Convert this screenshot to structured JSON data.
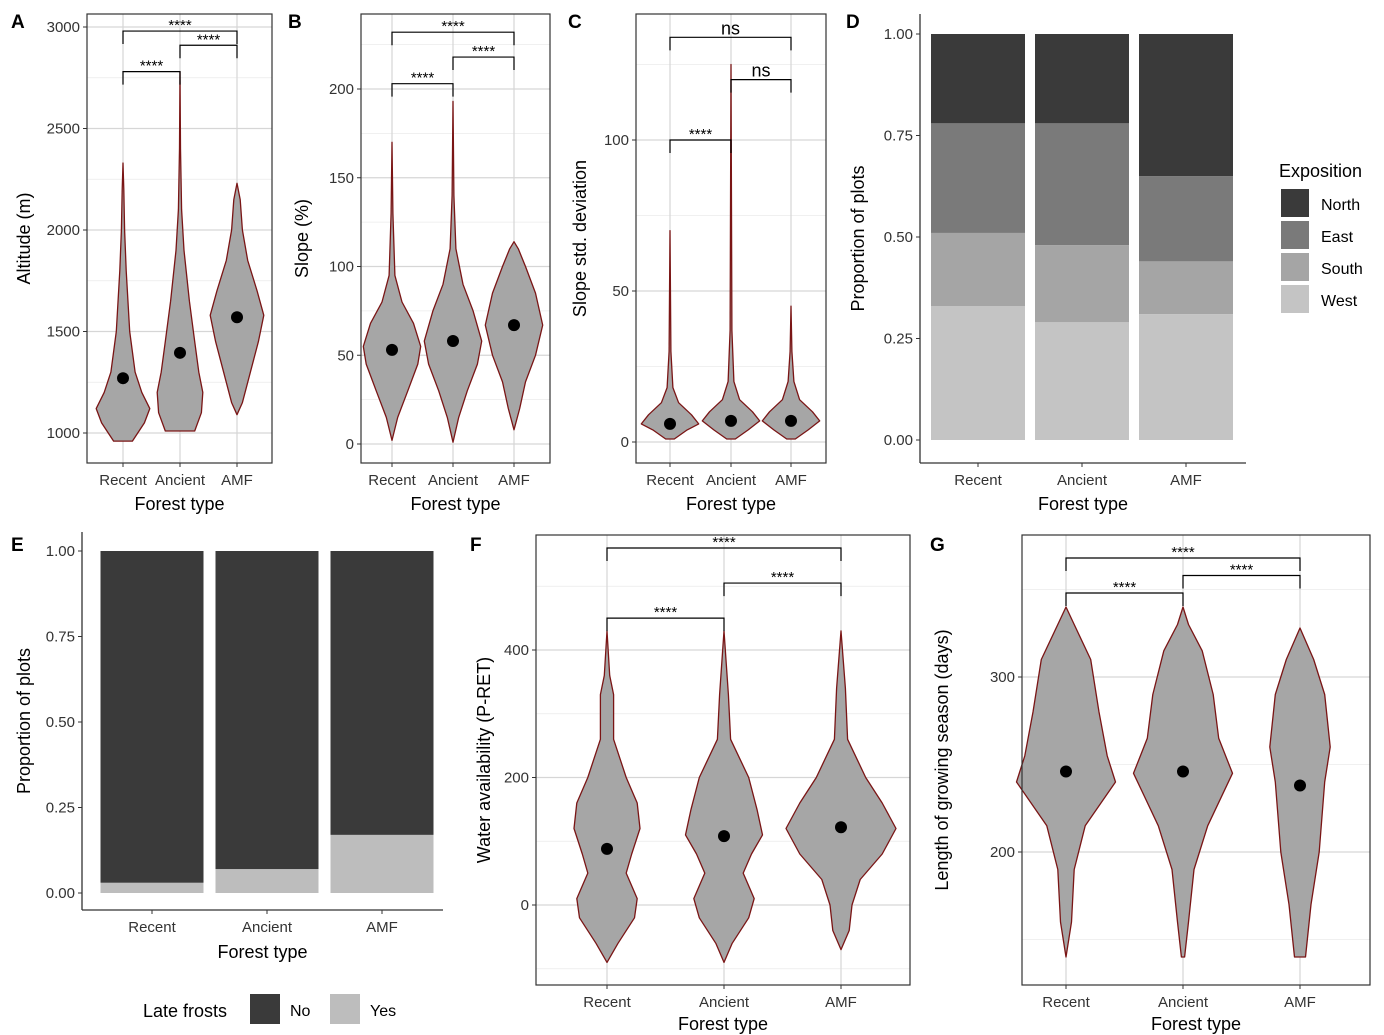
{
  "chart_data": [
    {
      "id": "A",
      "type": "violin",
      "panel_label": "A",
      "xlabel": "Forest type",
      "ylabel": "Altitude (m)",
      "categories": [
        "Recent",
        "Ancient",
        "AMF"
      ],
      "ylim": [
        930,
        3050
      ],
      "yticks": [
        1000,
        1500,
        2000,
        2500,
        3000
      ],
      "grid": true,
      "panel_border": true,
      "fill_color": "#a6a6a6",
      "outline_color": "#7a1515",
      "means": [
        1270,
        1395,
        1570
      ],
      "distributions": [
        {
          "category": "Recent",
          "profile": [
            [
              960,
              0.35
            ],
            [
              1050,
              0.8
            ],
            [
              1120,
              1.0
            ],
            [
              1200,
              0.7
            ],
            [
              1300,
              0.45
            ],
            [
              1500,
              0.25
            ],
            [
              1800,
              0.12
            ],
            [
              2000,
              0.06
            ],
            [
              2200,
              0.03
            ],
            [
              2330,
              0
            ]
          ]
        },
        {
          "category": "Ancient",
          "profile": [
            [
              1010,
              0.55
            ],
            [
              1100,
              0.8
            ],
            [
              1200,
              0.85
            ],
            [
              1300,
              0.7
            ],
            [
              1450,
              0.55
            ],
            [
              1650,
              0.35
            ],
            [
              1900,
              0.15
            ],
            [
              2100,
              0.06
            ],
            [
              2400,
              0.02
            ],
            [
              2780,
              0
            ]
          ]
        },
        {
          "category": "AMF",
          "profile": [
            [
              1090,
              0
            ],
            [
              1150,
              0.2
            ],
            [
              1300,
              0.5
            ],
            [
              1450,
              0.8
            ],
            [
              1580,
              1.0
            ],
            [
              1700,
              0.75
            ],
            [
              1850,
              0.4
            ],
            [
              2000,
              0.2
            ],
            [
              2150,
              0.12
            ],
            [
              2230,
              0
            ]
          ]
        }
      ],
      "comparisons": [
        {
          "from": "Recent",
          "to": "Ancient",
          "y": 2780,
          "label": "****"
        },
        {
          "from": "Ancient",
          "to": "AMF",
          "y": 2910,
          "label": "****"
        },
        {
          "from": "Recent",
          "to": "AMF",
          "y": 2980,
          "label": "****"
        }
      ]
    },
    {
      "id": "B",
      "type": "violin",
      "panel_label": "B",
      "xlabel": "Forest type",
      "ylabel": "Slope (%)",
      "categories": [
        "Recent",
        "Ancient",
        "AMF"
      ],
      "ylim": [
        -5,
        240
      ],
      "yticks": [
        0,
        50,
        100,
        150,
        200
      ],
      "grid": true,
      "panel_border": true,
      "fill_color": "#a6a6a6",
      "outline_color": "#7a1515",
      "means": [
        53,
        58,
        67
      ],
      "distributions": [
        {
          "category": "Recent",
          "profile": [
            [
              2,
              0
            ],
            [
              15,
              0.2
            ],
            [
              30,
              0.55
            ],
            [
              45,
              0.9
            ],
            [
              55,
              1.0
            ],
            [
              68,
              0.75
            ],
            [
              80,
              0.35
            ],
            [
              95,
              0.1
            ],
            [
              130,
              0.03
            ],
            [
              170,
              0
            ]
          ]
        },
        {
          "category": "Ancient",
          "profile": [
            [
              1,
              0
            ],
            [
              15,
              0.2
            ],
            [
              30,
              0.5
            ],
            [
              45,
              0.85
            ],
            [
              58,
              1.0
            ],
            [
              75,
              0.7
            ],
            [
              90,
              0.35
            ],
            [
              110,
              0.1
            ],
            [
              140,
              0.03
            ],
            [
              193,
              0
            ]
          ]
        },
        {
          "category": "AMF",
          "profile": [
            [
              8,
              0
            ],
            [
              20,
              0.2
            ],
            [
              35,
              0.4
            ],
            [
              50,
              0.75
            ],
            [
              67,
              1.0
            ],
            [
              85,
              0.75
            ],
            [
              100,
              0.4
            ],
            [
              110,
              0.15
            ],
            [
              114,
              0
            ]
          ]
        }
      ],
      "comparisons": [
        {
          "from": "Recent",
          "to": "Ancient",
          "y": 203,
          "label": "****"
        },
        {
          "from": "Ancient",
          "to": "AMF",
          "y": 218,
          "label": "****"
        },
        {
          "from": "Recent",
          "to": "AMF",
          "y": 232,
          "label": "****"
        }
      ]
    },
    {
      "id": "C",
      "type": "violin",
      "panel_label": "C",
      "xlabel": "Forest type",
      "ylabel": "Slope std. deviation",
      "categories": [
        "Recent",
        "Ancient",
        "AMF"
      ],
      "ylim": [
        -3,
        134
      ],
      "yticks": [
        0,
        50,
        100
      ],
      "grid": true,
      "panel_border": true,
      "fill_color": "#a6a6a6",
      "outline_color": "#7a1515",
      "means": [
        6,
        7,
        7
      ],
      "distributions": [
        {
          "category": "Recent",
          "profile": [
            [
              1,
              0.15
            ],
            [
              4,
              0.6
            ],
            [
              6,
              1.0
            ],
            [
              9,
              0.75
            ],
            [
              13,
              0.3
            ],
            [
              18,
              0.1
            ],
            [
              30,
              0.03
            ],
            [
              70,
              0
            ]
          ]
        },
        {
          "category": "Ancient",
          "profile": [
            [
              1,
              0.15
            ],
            [
              4,
              0.6
            ],
            [
              7,
              1.0
            ],
            [
              10,
              0.75
            ],
            [
              14,
              0.3
            ],
            [
              20,
              0.1
            ],
            [
              37,
              0.03
            ],
            [
              125,
              0
            ]
          ]
        },
        {
          "category": "AMF",
          "profile": [
            [
              1,
              0.15
            ],
            [
              4,
              0.6
            ],
            [
              7,
              1.0
            ],
            [
              10,
              0.75
            ],
            [
              14,
              0.3
            ],
            [
              20,
              0.1
            ],
            [
              30,
              0.03
            ],
            [
              45,
              0
            ]
          ]
        }
      ],
      "comparisons": [
        {
          "from": "Recent",
          "to": "Ancient",
          "y": 100,
          "label": "****"
        },
        {
          "from": "Ancient",
          "to": "AMF",
          "y": 120,
          "label": "ns"
        },
        {
          "from": "Recent",
          "to": "AMF",
          "y": 134,
          "label": "ns"
        }
      ]
    },
    {
      "id": "D",
      "type": "bar",
      "panel_label": "D",
      "stacked": true,
      "xlabel": "Forest type",
      "ylabel": "Proportion of plots",
      "categories": [
        "Recent",
        "Ancient",
        "AMF"
      ],
      "ylim": [
        0,
        1
      ],
      "yticks": [
        0,
        0.25,
        0.5,
        0.75,
        1.0
      ],
      "ytick_labels": [
        "0.00",
        "0.25",
        "0.50",
        "0.75",
        "1.00"
      ],
      "grid": false,
      "legend_position": "right",
      "legend_title": "Exposition",
      "series": [
        {
          "name": "West",
          "color": "#c4c4c4",
          "values": [
            0.33,
            0.29,
            0.31
          ]
        },
        {
          "name": "South",
          "color": "#a5a5a5",
          "values": [
            0.18,
            0.19,
            0.13
          ]
        },
        {
          "name": "East",
          "color": "#7a7a7a",
          "values": [
            0.27,
            0.3,
            0.21
          ]
        },
        {
          "name": "North",
          "color": "#3a3a3a",
          "values": [
            0.22,
            0.22,
            0.35
          ]
        }
      ],
      "legend_order": [
        "North",
        "East",
        "South",
        "West"
      ]
    },
    {
      "id": "E",
      "type": "bar",
      "panel_label": "E",
      "stacked": true,
      "xlabel": "Forest type",
      "ylabel": "Proportion of plots",
      "categories": [
        "Recent",
        "Ancient",
        "AMF"
      ],
      "ylim": [
        0,
        1
      ],
      "yticks": [
        0,
        0.25,
        0.5,
        0.75,
        1.0
      ],
      "ytick_labels": [
        "0.00",
        "0.25",
        "0.50",
        "0.75",
        "1.00"
      ],
      "grid": false,
      "legend_position": "bottom",
      "legend_title": "Late frosts",
      "series": [
        {
          "name": "Yes",
          "color": "#bdbdbd",
          "values": [
            0.03,
            0.07,
            0.17
          ]
        },
        {
          "name": "No",
          "color": "#3a3a3a",
          "values": [
            0.97,
            0.93,
            0.83
          ]
        }
      ],
      "legend_order": [
        "No",
        "Yes"
      ]
    },
    {
      "id": "F",
      "type": "violin",
      "panel_label": "F",
      "xlabel": "Forest type",
      "ylabel": "Water availability (P-RET)",
      "categories": [
        "Recent",
        "Ancient",
        "AMF"
      ],
      "ylim": [
        -110,
        600
      ],
      "yticks": [
        0,
        200,
        400
      ],
      "grid": true,
      "panel_border": true,
      "fill_color": "#a6a6a6",
      "outline_color": "#7a1515",
      "means": [
        88,
        108,
        122
      ],
      "distributions": [
        {
          "category": "Recent",
          "profile": [
            [
              -90,
              0
            ],
            [
              -60,
              0.2
            ],
            [
              -20,
              0.5
            ],
            [
              10,
              0.55
            ],
            [
              50,
              0.35
            ],
            [
              80,
              0.45
            ],
            [
              120,
              0.6
            ],
            [
              160,
              0.55
            ],
            [
              200,
              0.35
            ],
            [
              260,
              0.12
            ],
            [
              330,
              0.12
            ],
            [
              360,
              0.05
            ],
            [
              430,
              0
            ]
          ]
        },
        {
          "category": "Ancient",
          "profile": [
            [
              -90,
              0
            ],
            [
              -60,
              0.15
            ],
            [
              -20,
              0.45
            ],
            [
              10,
              0.55
            ],
            [
              50,
              0.35
            ],
            [
              80,
              0.5
            ],
            [
              110,
              0.7
            ],
            [
              150,
              0.6
            ],
            [
              200,
              0.45
            ],
            [
              260,
              0.12
            ],
            [
              330,
              0.08
            ],
            [
              430,
              0
            ]
          ]
        },
        {
          "category": "AMF",
          "profile": [
            [
              -70,
              0
            ],
            [
              -40,
              0.15
            ],
            [
              0,
              0.2
            ],
            [
              40,
              0.35
            ],
            [
              80,
              0.75
            ],
            [
              120,
              1.0
            ],
            [
              160,
              0.75
            ],
            [
              200,
              0.45
            ],
            [
              260,
              0.12
            ],
            [
              300,
              0.1
            ],
            [
              340,
              0.08
            ],
            [
              430,
              0
            ]
          ]
        }
      ],
      "comparisons": [
        {
          "from": "Recent",
          "to": "Ancient",
          "y": 450,
          "label": "****"
        },
        {
          "from": "Ancient",
          "to": "AMF",
          "y": 505,
          "label": "****"
        },
        {
          "from": "Recent",
          "to": "AMF",
          "y": 560,
          "label": "****"
        }
      ]
    },
    {
      "id": "G",
      "type": "violin",
      "panel_label": "G",
      "xlabel": "Forest type",
      "ylabel": "Length of growing season (days)",
      "categories": [
        "Recent",
        "Ancient",
        "AMF"
      ],
      "ylim": [
        135,
        360
      ],
      "yticks": [
        200,
        300
      ],
      "grid": true,
      "panel_border": true,
      "fill_color": "#a6a6a6",
      "outline_color": "#7a1515",
      "means": [
        246,
        246,
        238
      ],
      "distributions": [
        {
          "category": "Recent",
          "profile": [
            [
              140,
              0
            ],
            [
              160,
              0.1
            ],
            [
              190,
              0.15
            ],
            [
              215,
              0.35
            ],
            [
              240,
              0.9
            ],
            [
              255,
              0.75
            ],
            [
              280,
              0.6
            ],
            [
              310,
              0.45
            ],
            [
              330,
              0.15
            ],
            [
              340,
              0
            ]
          ]
        },
        {
          "category": "Ancient",
          "profile": [
            [
              140,
              0.03
            ],
            [
              160,
              0.1
            ],
            [
              190,
              0.2
            ],
            [
              215,
              0.45
            ],
            [
              245,
              0.9
            ],
            [
              265,
              0.65
            ],
            [
              290,
              0.55
            ],
            [
              315,
              0.35
            ],
            [
              330,
              0.1
            ],
            [
              340,
              0
            ]
          ]
        },
        {
          "category": "AMF",
          "profile": [
            [
              140,
              0.1
            ],
            [
              170,
              0.2
            ],
            [
              200,
              0.35
            ],
            [
              240,
              0.45
            ],
            [
              260,
              0.55
            ],
            [
              290,
              0.45
            ],
            [
              310,
              0.25
            ],
            [
              328,
              0
            ]
          ]
        }
      ],
      "comparisons": [
        {
          "from": "Recent",
          "to": "Ancient",
          "y": 348,
          "label": "****"
        },
        {
          "from": "Ancient",
          "to": "AMF",
          "y": 358,
          "label": "****"
        },
        {
          "from": "Recent",
          "to": "AMF",
          "y": 368,
          "label": "****"
        }
      ]
    }
  ]
}
